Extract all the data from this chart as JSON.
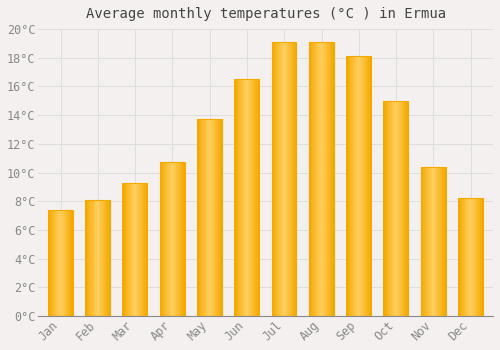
{
  "title": "Average monthly temperatures (°C ) in Ermua",
  "months": [
    "Jan",
    "Feb",
    "Mar",
    "Apr",
    "May",
    "Jun",
    "Jul",
    "Aug",
    "Sep",
    "Oct",
    "Nov",
    "Dec"
  ],
  "values": [
    7.4,
    8.1,
    9.3,
    10.7,
    13.7,
    16.5,
    19.1,
    19.1,
    18.1,
    15.0,
    10.4,
    8.2
  ],
  "bar_color_center": "#FFD060",
  "bar_color_edge": "#F5A800",
  "background_color": "#F5F0F0",
  "plot_bg_color": "#F5F0F0",
  "grid_color": "#DDDDDD",
  "tick_color": "#888888",
  "title_color": "#444444",
  "ylim": [
    0,
    20
  ],
  "ytick_step": 2,
  "title_fontsize": 10,
  "tick_fontsize": 8.5,
  "font_family": "monospace"
}
